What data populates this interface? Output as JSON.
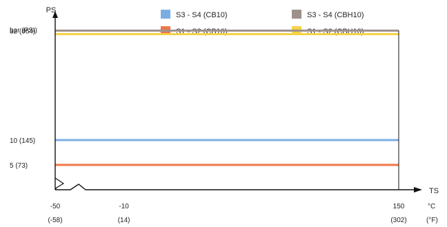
{
  "chart_data": {
    "type": "line",
    "y_axis": {
      "name": "PS",
      "unit_label": "bar (PSI)",
      "ylim": [
        0,
        34
      ],
      "ticks": [
        {
          "value": 32,
          "label": "32  (464)"
        },
        {
          "value": 10,
          "label": "10  (145)"
        },
        {
          "value": 5,
          "label": "5    (73)"
        }
      ]
    },
    "x_axis": {
      "name": "TS",
      "unit_c": "°C",
      "unit_f": "(°F)",
      "xlim": [
        -50,
        150
      ],
      "ticks": [
        {
          "value": -50,
          "label_c": "-50",
          "label_f": "(-58)"
        },
        {
          "value": -10,
          "label_c": "-10",
          "label_f": "(14)"
        },
        {
          "value": 150,
          "label_c": "150",
          "label_f": "(302)"
        }
      ]
    },
    "series": [
      {
        "name": "S3 - S4    (CB10)",
        "color": "#7aaee3",
        "x": [
          -50,
          150
        ],
        "y": [
          10,
          10
        ]
      },
      {
        "name": "S1 - S2    (CB10)",
        "color": "#f07646",
        "x": [
          -50,
          150
        ],
        "y": [
          5,
          5
        ]
      },
      {
        "name": "S3 - S4    (CBH10)",
        "color": "#9d918a",
        "x": [
          -50,
          150
        ],
        "y": [
          32,
          32
        ]
      },
      {
        "name": "S1 - S2    (CBH10)",
        "color": "#f6d248",
        "x": [
          -50,
          150
        ],
        "y": [
          31.3,
          31.3
        ]
      }
    ],
    "legend_placement": "top",
    "grid": false
  }
}
